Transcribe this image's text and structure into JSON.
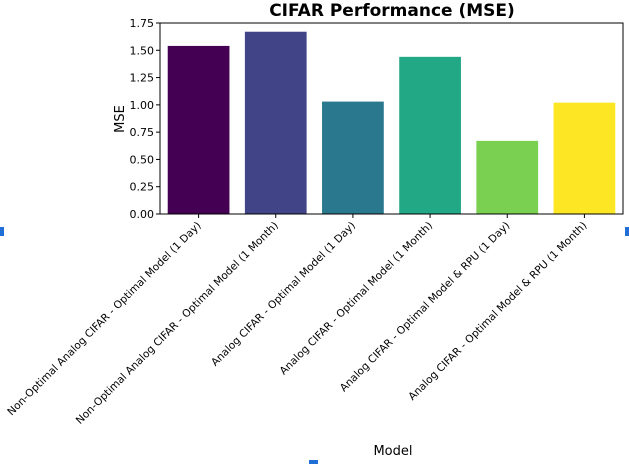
{
  "chart_data": {
    "type": "bar",
    "title": "CIFAR Performance (MSE)",
    "xlabel": "Model",
    "ylabel": "MSE",
    "ylim": [
      0,
      1.75
    ],
    "yticks": [
      "0.00",
      "0.25",
      "0.50",
      "0.75",
      "1.00",
      "1.25",
      "1.50",
      "1.75"
    ],
    "grid": false,
    "categories": [
      "Non-Optimal Analog CIFAR - Optimal Model (1 Day)",
      "Non-Optimal Analog CIFAR - Optimal Model (1 Month)",
      "Analog CIFAR - Optimal Model (1 Day)",
      "Analog CIFAR - Optimal Model (1 Month)",
      "Analog CIFAR - Optimal Model & RPU (1 Day)",
      "Analog CIFAR - Optimal Model & RPU (1 Month)"
    ],
    "values": [
      1.54,
      1.67,
      1.03,
      1.44,
      0.67,
      1.02
    ],
    "colors": [
      "#440154",
      "#414487",
      "#2a788e",
      "#22a884",
      "#7ad151",
      "#fde725"
    ]
  }
}
